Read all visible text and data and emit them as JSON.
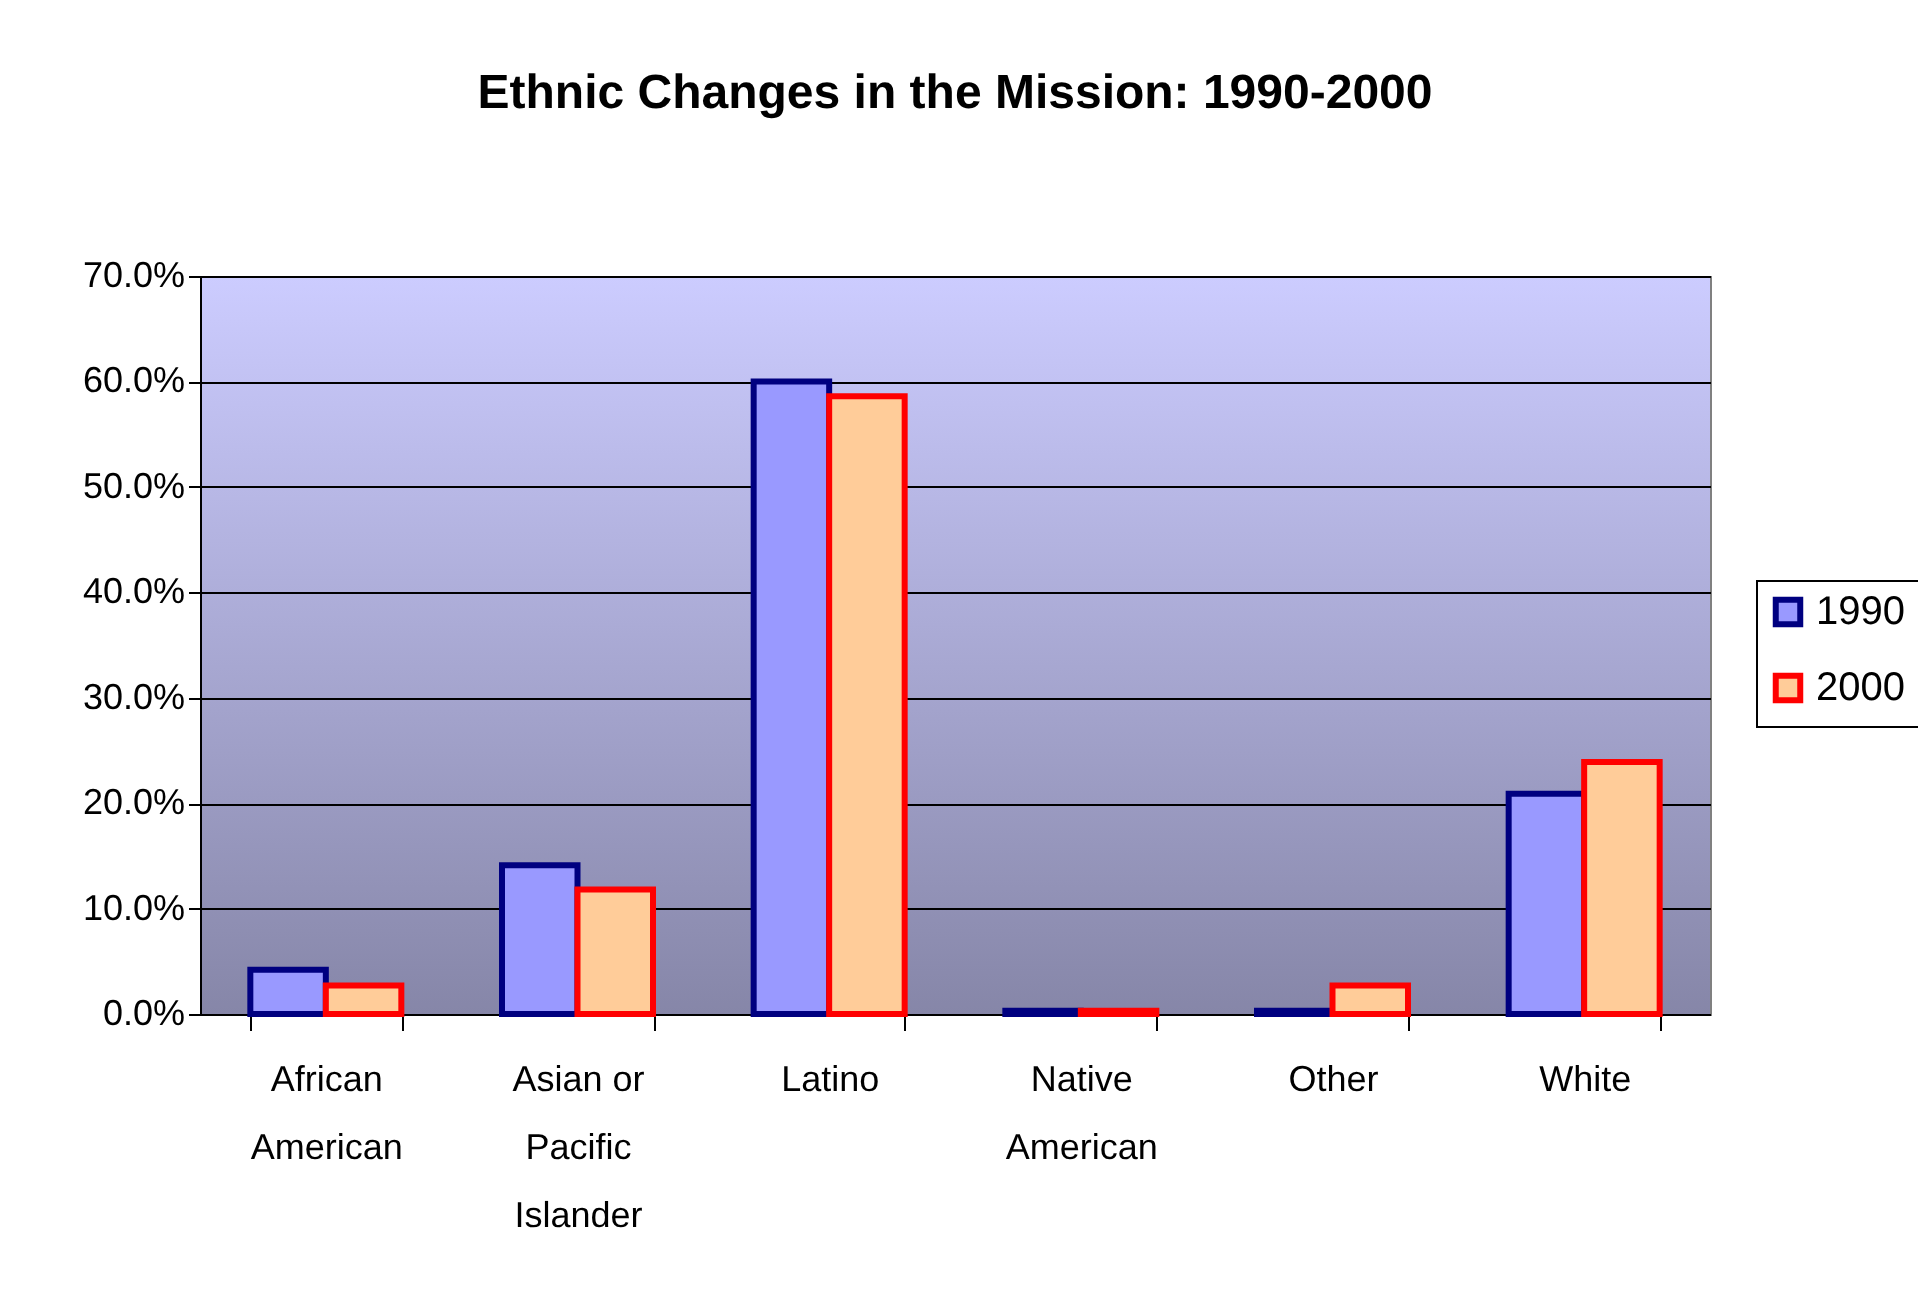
{
  "chart_data": {
    "type": "bar",
    "title": "Ethnic Changes in the Mission: 1990-2000",
    "categories": [
      "African American",
      "Asian or Pacific Islander",
      "Latino",
      "Native American",
      "Other",
      "White"
    ],
    "series": [
      {
        "name": "1990",
        "color": "#9999ff",
        "values": [
          4.2,
          14.1,
          60.0,
          0.3,
          0.3,
          20.9
        ]
      },
      {
        "name": "2000",
        "color": "#ffcc99",
        "values": [
          2.7,
          11.8,
          58.6,
          0.3,
          2.7,
          23.9
        ]
      }
    ],
    "ylim": [
      0,
      70
    ],
    "yticks": [
      {
        "value": 0,
        "label": "0.0%"
      },
      {
        "value": 10,
        "label": "10.0%"
      },
      {
        "value": 20,
        "label": "20.0%"
      },
      {
        "value": 30,
        "label": "30.0%"
      },
      {
        "value": 40,
        "label": "40.0%"
      },
      {
        "value": 50,
        "label": "50.0%"
      },
      {
        "value": 60,
        "label": "60.0%"
      },
      {
        "value": 70,
        "label": "70.0%"
      }
    ],
    "grid": "y",
    "legend": "right"
  }
}
